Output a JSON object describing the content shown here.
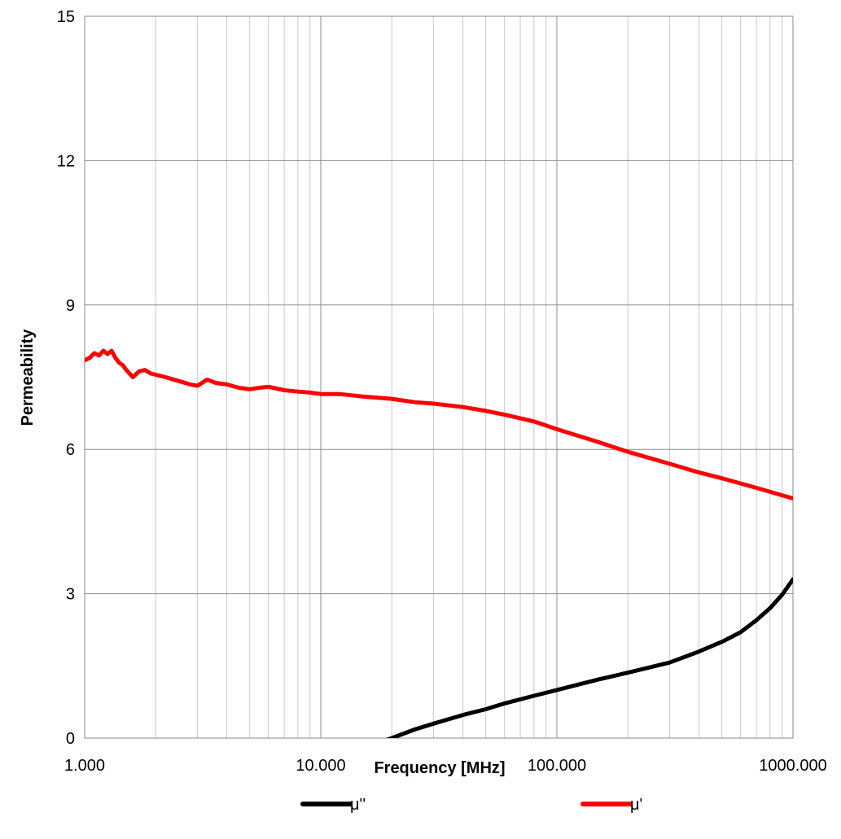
{
  "chart_data": {
    "type": "line",
    "xlabel": "Frequency [MHz]",
    "ylabel": "Permeability",
    "x_scale": "log",
    "xlim": [
      1,
      1000
    ],
    "ylim": [
      0,
      15
    ],
    "x_ticks": [
      1,
      10,
      100,
      1000
    ],
    "x_tick_labels": [
      "1.000",
      "10.000",
      "100.000",
      "1000.000"
    ],
    "y_ticks": [
      0,
      3,
      6,
      9,
      12,
      15
    ],
    "y_tick_labels": [
      "0",
      "3",
      "6",
      "9",
      "12",
      "15"
    ],
    "grid": true,
    "legend_position": "bottom",
    "series": [
      {
        "name": "μ''",
        "color": "#000000",
        "x": [
          17.5,
          20,
          25,
          30,
          40,
          50,
          60,
          80,
          100,
          150,
          200,
          300,
          400,
          500,
          600,
          700,
          800,
          900,
          1000
        ],
        "y": [
          -0.1,
          0.0,
          0.18,
          0.3,
          0.48,
          0.6,
          0.72,
          0.88,
          1.0,
          1.22,
          1.36,
          1.57,
          1.8,
          2.0,
          2.2,
          2.45,
          2.7,
          2.98,
          3.3
        ]
      },
      {
        "name": "μ'",
        "color": "#ff0000",
        "x": [
          1.0,
          1.05,
          1.1,
          1.15,
          1.2,
          1.25,
          1.3,
          1.35,
          1.4,
          1.45,
          1.5,
          1.6,
          1.7,
          1.8,
          1.9,
          2.0,
          2.2,
          2.5,
          2.8,
          3.0,
          3.3,
          3.6,
          4.0,
          4.5,
          5.0,
          5.5,
          6.0,
          7.0,
          8.0,
          9.0,
          10,
          12,
          15,
          20,
          25,
          30,
          40,
          50,
          60,
          80,
          100,
          150,
          200,
          300,
          400,
          500,
          700,
          1000
        ],
        "y": [
          7.85,
          7.9,
          8.0,
          7.95,
          8.05,
          7.98,
          8.05,
          7.9,
          7.8,
          7.75,
          7.65,
          7.5,
          7.62,
          7.65,
          7.58,
          7.55,
          7.5,
          7.42,
          7.35,
          7.32,
          7.45,
          7.38,
          7.35,
          7.28,
          7.25,
          7.28,
          7.3,
          7.23,
          7.2,
          7.18,
          7.15,
          7.15,
          7.1,
          7.05,
          6.98,
          6.95,
          6.88,
          6.8,
          6.72,
          6.58,
          6.42,
          6.15,
          5.95,
          5.7,
          5.52,
          5.4,
          5.2,
          4.98
        ]
      }
    ]
  }
}
